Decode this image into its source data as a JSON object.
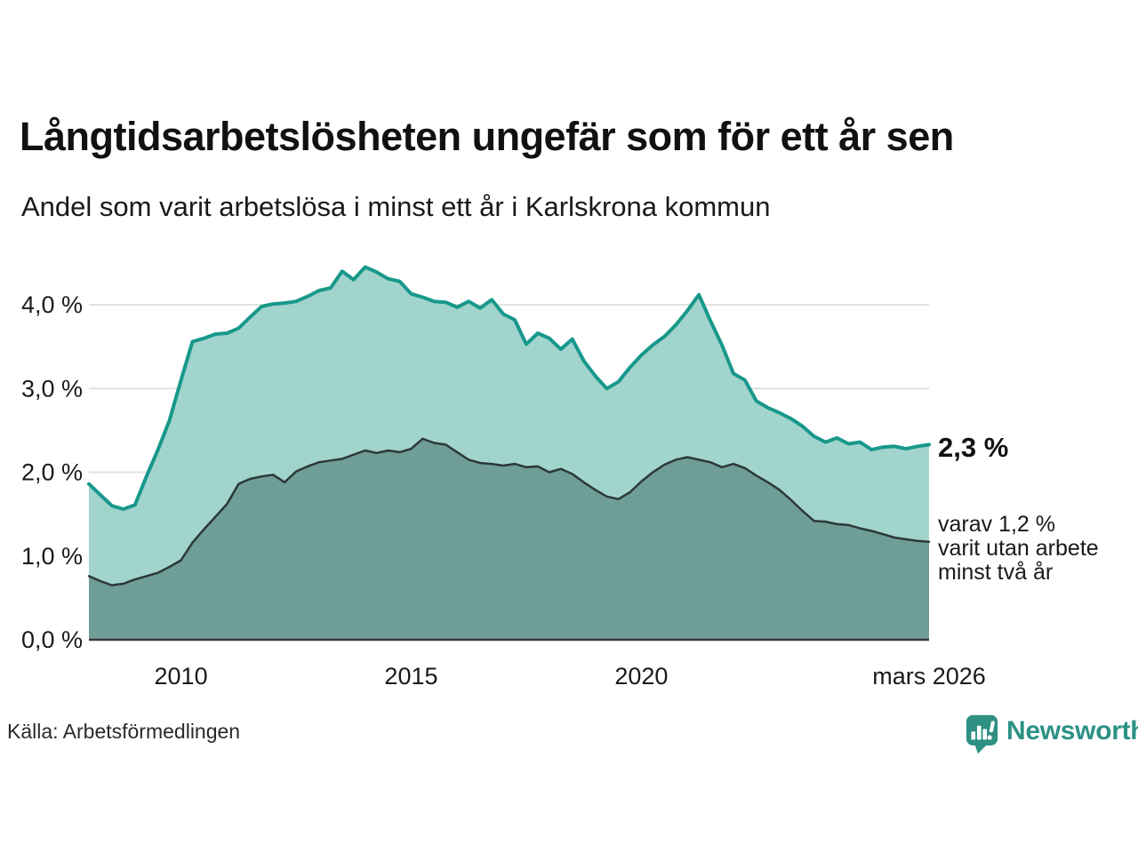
{
  "header": {
    "title": "Långtidsarbetslösheten ungefär som för ett år sen",
    "subtitle": "Andel som varit arbetslösa i minst ett år i Karlskrona kommun"
  },
  "annotations": {
    "total_label": "2,3 %",
    "subset_lines": [
      "varav 1,2 %",
      "varit utan arbete",
      "minst två år"
    ]
  },
  "footer": {
    "source": "Källa: Arbetsförmedlingen",
    "brand_name": "Newsworthy",
    "brand_icon": "bar-chart-speech-bubble-icon"
  },
  "colors": {
    "total_line": "#17988b",
    "total_fill": "#a1d4cd",
    "subset_line": "#2b3936",
    "subset_fill": "#6f9d98",
    "grid": "#e2e2e2",
    "axis": "#3b3b3b",
    "text": "#1a1a1a",
    "brand": "#2d9186"
  },
  "chart_data": {
    "type": "area",
    "title": "Långtidsarbetslösheten ungefär som för ett år sen",
    "subtitle": "Andel som varit arbetslösa i minst ett år i Karlskrona kommun",
    "unit": "%",
    "grid": true,
    "x_range": [
      2008.0,
      2026.25
    ],
    "y_range": [
      0,
      4.6
    ],
    "x_ticks": [
      {
        "year": 2010,
        "label": "2010"
      },
      {
        "year": 2015,
        "label": "2015"
      },
      {
        "year": 2020,
        "label": "2020"
      },
      {
        "year": 2026.25,
        "label": "mars 2026"
      }
    ],
    "y_ticks": [
      {
        "value": 0,
        "label": "0,0 %"
      },
      {
        "value": 1,
        "label": "1,0 %"
      },
      {
        "value": 2,
        "label": "2,0 %"
      },
      {
        "value": 3,
        "label": "3,0 %"
      },
      {
        "value": 4,
        "label": "4,0 %"
      }
    ],
    "x": [
      2008.0,
      2008.25,
      2008.5,
      2008.75,
      2009.0,
      2009.25,
      2009.5,
      2009.75,
      2010.0,
      2010.25,
      2010.5,
      2010.75,
      2011.0,
      2011.25,
      2011.5,
      2011.75,
      2012.0,
      2012.25,
      2012.5,
      2012.75,
      2013.0,
      2013.25,
      2013.5,
      2013.75,
      2014.0,
      2014.25,
      2014.5,
      2014.75,
      2015.0,
      2015.25,
      2015.5,
      2015.75,
      2016.0,
      2016.25,
      2016.5,
      2016.75,
      2017.0,
      2017.25,
      2017.5,
      2017.75,
      2018.0,
      2018.25,
      2018.5,
      2018.75,
      2019.0,
      2019.25,
      2019.5,
      2019.75,
      2020.0,
      2020.25,
      2020.5,
      2020.75,
      2021.0,
      2021.25,
      2021.5,
      2021.75,
      2022.0,
      2022.25,
      2022.5,
      2022.75,
      2023.0,
      2023.25,
      2023.5,
      2023.75,
      2024.0,
      2024.25,
      2024.5,
      2024.75,
      2025.0,
      2025.25,
      2025.5,
      2025.75,
      2026.0,
      2026.25
    ],
    "series": [
      {
        "id": "total",
        "name": "Andel arbetslösa minst ett år",
        "end_value_label": "2,3 %",
        "line_width": 4,
        "values": [
          1.86,
          1.73,
          1.6,
          1.56,
          1.61,
          1.95,
          2.27,
          2.62,
          3.1,
          3.56,
          3.6,
          3.65,
          3.66,
          3.72,
          3.85,
          3.98,
          4.01,
          4.02,
          4.04,
          4.1,
          4.17,
          4.2,
          4.4,
          4.3,
          4.45,
          4.39,
          4.31,
          4.28,
          4.13,
          4.09,
          4.04,
          4.03,
          3.97,
          4.04,
          3.96,
          4.06,
          3.89,
          3.82,
          3.53,
          3.66,
          3.6,
          3.47,
          3.59,
          3.33,
          3.15,
          3.0,
          3.08,
          3.25,
          3.4,
          3.52,
          3.62,
          3.76,
          3.93,
          4.12,
          3.81,
          3.52,
          3.18,
          3.1,
          2.85,
          2.77,
          2.71,
          2.64,
          2.55,
          2.43,
          2.36,
          2.41,
          2.34,
          2.36,
          2.27,
          2.3,
          2.31,
          2.28,
          2.31,
          2.33
        ]
      },
      {
        "id": "subset",
        "name": "varav utan arbete minst två år",
        "end_value_label": "1,2 %",
        "line_width": 2.5,
        "values": [
          0.76,
          0.7,
          0.65,
          0.67,
          0.72,
          0.76,
          0.8,
          0.87,
          0.95,
          1.16,
          1.32,
          1.47,
          1.62,
          1.86,
          1.92,
          1.95,
          1.97,
          1.88,
          2.01,
          2.07,
          2.12,
          2.14,
          2.16,
          2.21,
          2.26,
          2.23,
          2.26,
          2.24,
          2.28,
          2.4,
          2.35,
          2.33,
          2.24,
          2.15,
          2.11,
          2.1,
          2.08,
          2.1,
          2.06,
          2.07,
          2.0,
          2.04,
          1.98,
          1.88,
          1.79,
          1.71,
          1.68,
          1.76,
          1.89,
          2.0,
          2.09,
          2.15,
          2.18,
          2.15,
          2.12,
          2.06,
          2.1,
          2.05,
          1.96,
          1.88,
          1.79,
          1.67,
          1.54,
          1.42,
          1.41,
          1.38,
          1.37,
          1.33,
          1.3,
          1.26,
          1.22,
          1.2,
          1.18,
          1.17
        ]
      }
    ]
  }
}
